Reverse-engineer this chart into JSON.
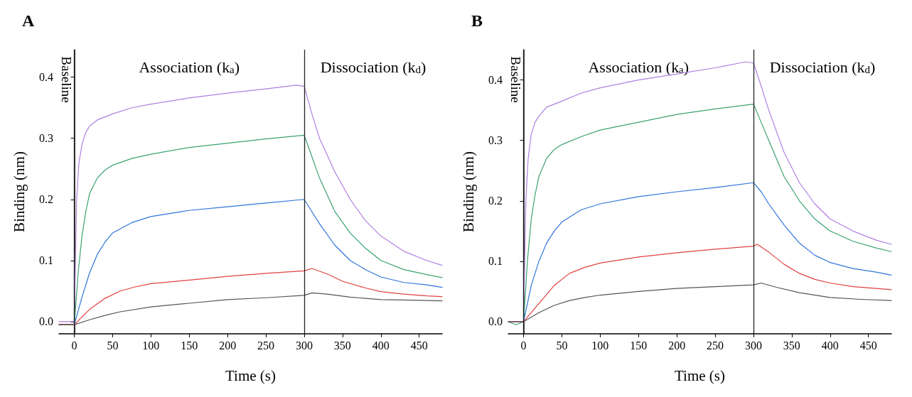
{
  "chart_data": [
    {
      "type": "line",
      "title": "A",
      "xlabel": "Time (s)",
      "ylabel": "Binding (nm)",
      "xlim": [
        -20,
        480
      ],
      "xticks": [
        0,
        50,
        100,
        150,
        200,
        250,
        300,
        350,
        400,
        450
      ],
      "ylim": [
        -0.02,
        0.445
      ],
      "yticks": [
        {
          "value": 0,
          "label": "0.0"
        },
        {
          "value": 0.1,
          "label": "0.1"
        },
        {
          "value": 0.2,
          "label": "0.2"
        },
        {
          "value": 0.3,
          "label": "0.3"
        },
        {
          "value": 0.4,
          "label": "0.4"
        }
      ],
      "grid": false,
      "marker": "none",
      "line_style": "solid",
      "ref_lines": [
        {
          "axis": "x",
          "value": 0,
          "color": "#222222"
        },
        {
          "axis": "x",
          "value": 300,
          "color": "#222222"
        }
      ],
      "annotations": [
        "Baseline",
        "Association (k$_{a}$)",
        "Dissociation (k$_{d}$)"
      ],
      "series": [
        {
          "color": "#b07fe0",
          "x": [
            -20,
            -10,
            0,
            3,
            6,
            10,
            15,
            20,
            30,
            40,
            50,
            75,
            100,
            150,
            200,
            250,
            290,
            300,
            310,
            320,
            340,
            360,
            380,
            400,
            430,
            460,
            480
          ],
          "values": [
            0,
            0,
            0,
            0.2,
            0.26,
            0.29,
            0.31,
            0.32,
            0.33,
            0.335,
            0.34,
            0.35,
            0.356,
            0.366,
            0.374,
            0.381,
            0.387,
            0.385,
            0.34,
            0.3,
            0.245,
            0.2,
            0.165,
            0.14,
            0.115,
            0.1,
            0.092
          ]
        },
        {
          "color": "#3aa36f",
          "x": [
            -20,
            0,
            5,
            10,
            15,
            20,
            30,
            40,
            50,
            75,
            100,
            150,
            200,
            250,
            300,
            310,
            320,
            340,
            360,
            380,
            400,
            430,
            460,
            480
          ],
          "values": [
            -0.005,
            -0.005,
            0.08,
            0.14,
            0.18,
            0.21,
            0.235,
            0.248,
            0.256,
            0.267,
            0.274,
            0.285,
            0.292,
            0.299,
            0.305,
            0.27,
            0.235,
            0.18,
            0.145,
            0.12,
            0.1,
            0.085,
            0.077,
            0.072
          ]
        },
        {
          "color": "#2f74d9",
          "x": [
            -20,
            0,
            10,
            20,
            30,
            40,
            50,
            75,
            100,
            150,
            200,
            250,
            300,
            310,
            320,
            340,
            360,
            380,
            400,
            430,
            460,
            480
          ],
          "values": [
            -0.005,
            -0.005,
            0.04,
            0.08,
            0.11,
            0.13,
            0.145,
            0.162,
            0.172,
            0.182,
            0.188,
            0.194,
            0.2,
            0.18,
            0.16,
            0.125,
            0.1,
            0.085,
            0.073,
            0.064,
            0.06,
            0.056
          ]
        },
        {
          "color": "#e0413f",
          "x": [
            -20,
            0,
            20,
            40,
            60,
            80,
            100,
            150,
            200,
            250,
            300,
            310,
            330,
            350,
            380,
            400,
            430,
            460,
            480
          ],
          "values": [
            -0.005,
            -0.005,
            0.02,
            0.038,
            0.05,
            0.057,
            0.062,
            0.068,
            0.074,
            0.079,
            0.083,
            0.087,
            0.078,
            0.066,
            0.055,
            0.049,
            0.045,
            0.042,
            0.041
          ]
        },
        {
          "color": "#555555",
          "x": [
            -20,
            0,
            20,
            40,
            60,
            100,
            150,
            200,
            250,
            300,
            310,
            330,
            360,
            400,
            440,
            480
          ],
          "values": [
            -0.005,
            -0.005,
            0.003,
            0.01,
            0.016,
            0.024,
            0.03,
            0.036,
            0.039,
            0.043,
            0.047,
            0.045,
            0.04,
            0.036,
            0.035,
            0.034
          ]
        }
      ]
    },
    {
      "type": "line",
      "title": "B",
      "xlabel": "Time (s)",
      "ylabel": "Binding (nm)",
      "xlim": [
        -20,
        480
      ],
      "xticks": [
        0,
        50,
        100,
        150,
        200,
        250,
        300,
        350,
        400,
        450
      ],
      "ylim": [
        -0.02,
        0.45
      ],
      "yticks": [
        {
          "value": 0,
          "label": "0.0"
        },
        {
          "value": 0.1,
          "label": "0.1"
        },
        {
          "value": 0.2,
          "label": "0.2"
        },
        {
          "value": 0.3,
          "label": "0.3"
        },
        {
          "value": 0.4,
          "label": "0.4"
        }
      ],
      "grid": false,
      "marker": "none",
      "line_style": "solid",
      "ref_lines": [
        {
          "axis": "x",
          "value": 0,
          "color": "#222222"
        },
        {
          "axis": "x",
          "value": 300,
          "color": "#222222"
        }
      ],
      "annotations": [
        "Baseline",
        "Association (k$_{a}$)",
        "Dissociation (k$_{d}$)"
      ],
      "series": [
        {
          "color": "#b07fe0",
          "x": [
            -20,
            0,
            3,
            6,
            10,
            15,
            20,
            30,
            50,
            75,
            100,
            150,
            200,
            250,
            290,
            300,
            310,
            320,
            340,
            360,
            380,
            400,
            430,
            460,
            480
          ],
          "values": [
            0,
            0,
            0.2,
            0.27,
            0.31,
            0.33,
            0.34,
            0.355,
            0.365,
            0.378,
            0.387,
            0.4,
            0.41,
            0.42,
            0.43,
            0.428,
            0.39,
            0.35,
            0.28,
            0.23,
            0.195,
            0.17,
            0.15,
            0.135,
            0.128
          ]
        },
        {
          "color": "#3aa36f",
          "x": [
            -20,
            -10,
            0,
            5,
            10,
            15,
            20,
            30,
            40,
            50,
            75,
            100,
            150,
            200,
            250,
            300,
            310,
            320,
            340,
            360,
            380,
            400,
            430,
            460,
            480
          ],
          "values": [
            0,
            -0.005,
            0,
            0.1,
            0.17,
            0.21,
            0.24,
            0.27,
            0.285,
            0.293,
            0.306,
            0.317,
            0.33,
            0.343,
            0.352,
            0.36,
            0.33,
            0.3,
            0.24,
            0.2,
            0.17,
            0.15,
            0.133,
            0.122,
            0.116
          ]
        },
        {
          "color": "#2f74d9",
          "x": [
            -20,
            0,
            10,
            20,
            30,
            40,
            50,
            75,
            100,
            150,
            200,
            250,
            300,
            310,
            320,
            340,
            360,
            380,
            400,
            430,
            460,
            480
          ],
          "values": [
            0,
            0,
            0.06,
            0.1,
            0.13,
            0.15,
            0.165,
            0.185,
            0.195,
            0.207,
            0.215,
            0.222,
            0.23,
            0.215,
            0.195,
            0.16,
            0.13,
            0.11,
            0.098,
            0.088,
            0.082,
            0.077
          ]
        },
        {
          "color": "#e0413f",
          "x": [
            -20,
            0,
            20,
            40,
            60,
            80,
            100,
            150,
            200,
            250,
            300,
            305,
            320,
            340,
            360,
            380,
            400,
            430,
            460,
            480
          ],
          "values": [
            0,
            0,
            0.03,
            0.06,
            0.08,
            0.09,
            0.097,
            0.107,
            0.114,
            0.12,
            0.125,
            0.128,
            0.115,
            0.095,
            0.08,
            0.07,
            0.064,
            0.058,
            0.055,
            0.053
          ]
        },
        {
          "color": "#555555",
          "x": [
            -20,
            0,
            20,
            40,
            60,
            80,
            100,
            150,
            200,
            250,
            300,
            310,
            330,
            360,
            400,
            440,
            480
          ],
          "values": [
            0,
            0,
            0.015,
            0.027,
            0.035,
            0.04,
            0.044,
            0.05,
            0.055,
            0.058,
            0.061,
            0.064,
            0.057,
            0.048,
            0.04,
            0.037,
            0.035
          ]
        }
      ]
    }
  ]
}
